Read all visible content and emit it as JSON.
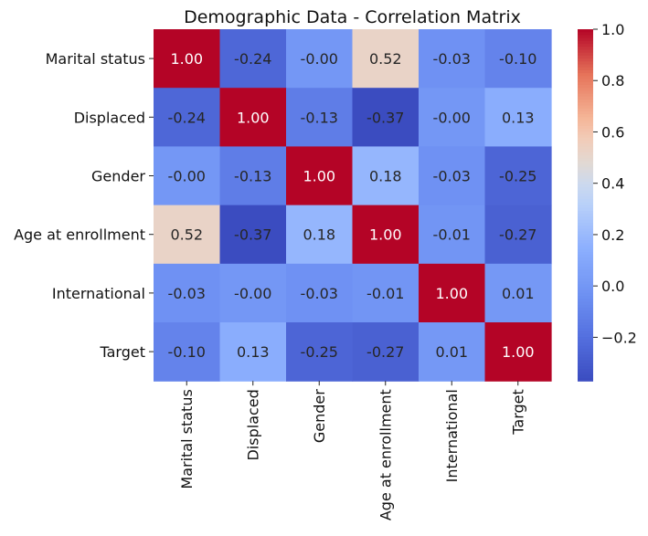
{
  "chart_data": {
    "type": "heatmap",
    "title": "Demographic Data - Correlation Matrix",
    "rows": [
      "Marital status",
      "Displaced",
      "Gender",
      "Age at enrollment",
      "International",
      "Target"
    ],
    "columns": [
      "Marital status",
      "Displaced",
      "Gender",
      "Age at enrollment",
      "International",
      "Target"
    ],
    "values": [
      [
        1.0,
        -0.24,
        -0.0,
        0.52,
        -0.03,
        -0.1
      ],
      [
        -0.24,
        1.0,
        -0.13,
        -0.37,
        -0.0,
        0.13
      ],
      [
        -0.0,
        -0.13,
        1.0,
        0.18,
        -0.03,
        -0.25
      ],
      [
        0.52,
        -0.37,
        0.18,
        1.0,
        -0.01,
        -0.27
      ],
      [
        -0.03,
        -0.0,
        -0.03,
        -0.01,
        1.0,
        0.01
      ],
      [
        -0.1,
        0.13,
        -0.25,
        -0.27,
        0.01,
        1.0
      ]
    ],
    "annotation_format": "2 decimals",
    "colormap": "coolwarm",
    "colorbar": {
      "range": [
        -0.37,
        1.0
      ],
      "ticks": [
        1.0,
        0.8,
        0.6,
        0.4,
        0.2,
        0.0,
        -0.2
      ],
      "tick_labels": [
        "1.0",
        "0.8",
        "0.6",
        "0.4",
        "0.2",
        "0.0",
        "−0.2"
      ]
    },
    "grid": false
  }
}
